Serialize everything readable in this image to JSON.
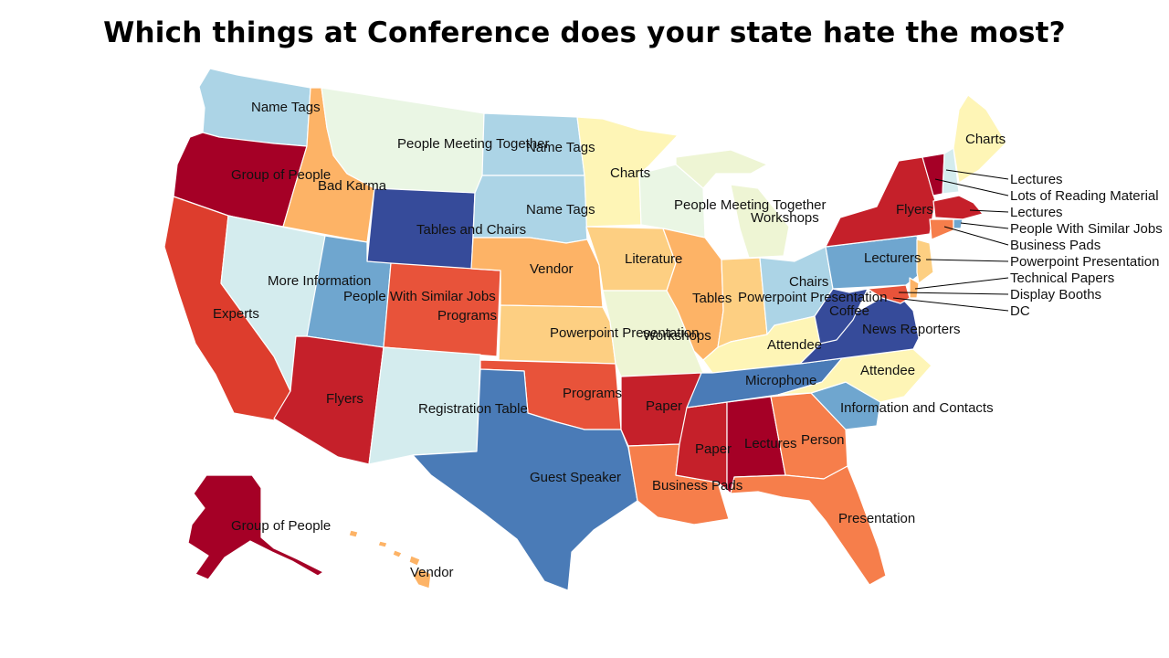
{
  "title": "Which things at Conference does your state hate the most?",
  "colors": {
    "dark_red": "#a50026",
    "red": "#c5202a",
    "red_orange": "#dd3d2d",
    "orange_red": "#e8533a",
    "orange": "#f67e4b",
    "light_orange": "#fdb366",
    "peach": "#fdcf82",
    "light_yellow": "#fef5b6",
    "cream": "#feffbf",
    "pale_green": "#eaf6e4",
    "pale_yellowgreen": "#eef5d4",
    "pale_blue": "#d4ecee",
    "light_blue": "#acd4e6",
    "mid_blue": "#6fa6cf",
    "blue": "#4a7bb7",
    "dark_blue": "#364b9a"
  },
  "states": {
    "WA": "Name Tags",
    "OR": "Group of People",
    "ID": "Bad Karma",
    "MT": "People Meeting Together",
    "WY": "Tables and Chairs",
    "ND": "Name Tags",
    "SD": "Name Tags",
    "MN": "Charts",
    "CA": "Experts",
    "NV": "More Information",
    "UT": "People With Similar Jobs",
    "CO": "Programs",
    "AZ": "Flyers",
    "NM": "Registration Table",
    "NE": "Vendor",
    "KS": "Powerpoint Presentation",
    "OK": "Programs",
    "TX": "Guest Speaker",
    "IA": "Literature",
    "MO": "Workshops",
    "AR": "Paper",
    "LA": "Business Pads",
    "MS": "Paper",
    "AL": "Lectures",
    "WI": "People Meeting Together",
    "MI": "Workshops",
    "IL": "Tables",
    "IN": "Powerpoint Presentation",
    "OH": "Chairs",
    "KY": "Attendee",
    "TN": "Microphone",
    "GA": "Person",
    "FL": "Presentation",
    "SC": "Information and Contacts",
    "NC": "Attendee",
    "VA": "News Reporters",
    "WV": "Coffee",
    "PA": "Lecturers",
    "NY": "Flyers",
    "ME": "Charts",
    "AK": "Group of People",
    "HI": "Vendor"
  },
  "callouts": [
    "Lectures",
    "Lots of Reading Material",
    "Lectures",
    "People With Similar Jobs",
    "Business Pads",
    "Powerpoint Presentation",
    "Technical Papers",
    "Display Booths",
    "DC"
  ]
}
